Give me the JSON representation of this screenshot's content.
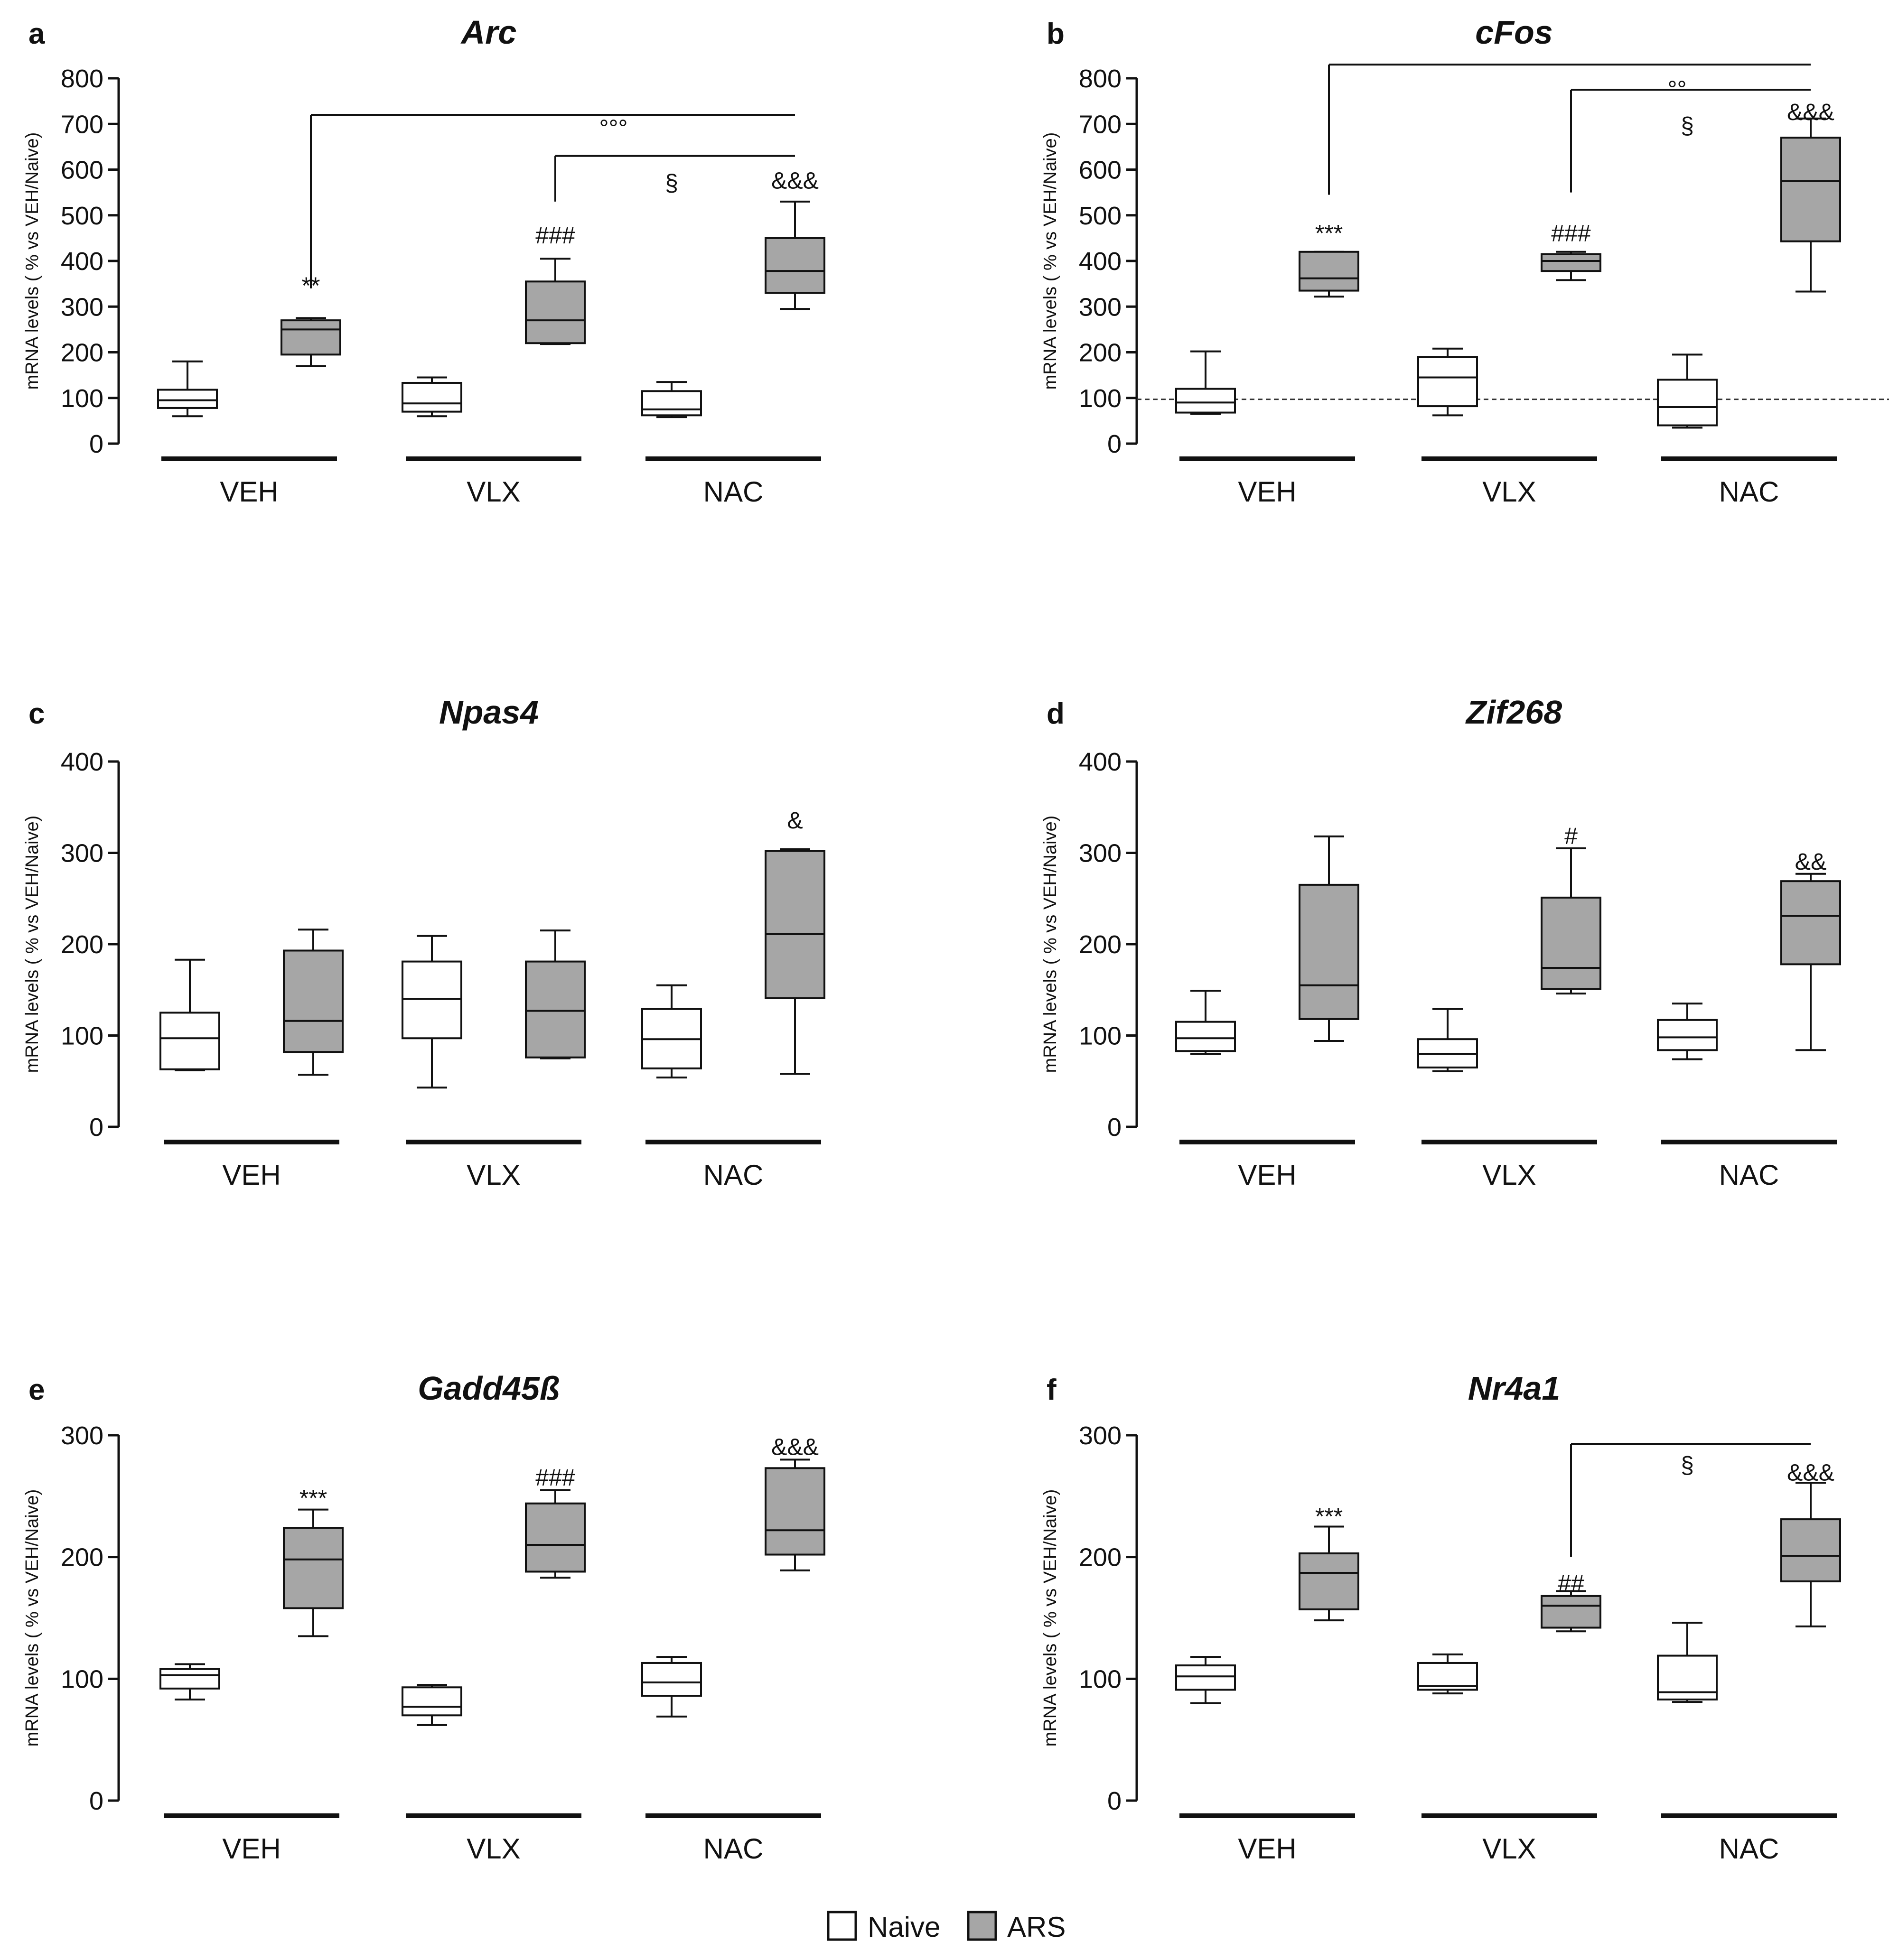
{
  "legend": {
    "items": [
      {
        "label": "Naive",
        "color": "#ffffff"
      },
      {
        "label": "ARS",
        "color": "#a6a6a6"
      }
    ]
  },
  "chart_data": [
    {
      "id": "a",
      "letter": "a",
      "type": "box",
      "title": "Arc",
      "ylabel": "mRNA levels ( % vs VEH/Naive)",
      "ylim": [
        0,
        800
      ],
      "yticks": [
        0,
        100,
        200,
        300,
        400,
        500,
        600,
        700,
        800
      ],
      "groups": [
        "VEH",
        "VLX",
        "NAC"
      ],
      "series": [
        {
          "name": "Naive",
          "boxes": [
            {
              "min": 60,
              "q1": 78,
              "median": 95,
              "q3": 118,
              "max": 180
            },
            {
              "min": 60,
              "q1": 70,
              "median": 88,
              "q3": 133,
              "max": 145
            },
            {
              "min": 58,
              "q1": 62,
              "median": 75,
              "q3": 115,
              "max": 135
            }
          ]
        },
        {
          "name": "ARS",
          "boxes": [
            {
              "min": 170,
              "q1": 195,
              "median": 250,
              "q3": 270,
              "max": 275
            },
            {
              "min": 218,
              "q1": 220,
              "median": 270,
              "q3": 355,
              "max": 405
            },
            {
              "min": 295,
              "q1": 330,
              "median": 378,
              "q3": 450,
              "max": 530
            }
          ]
        }
      ],
      "annotations": [
        {
          "text": "**",
          "group": 0,
          "series": 1,
          "y": 345
        },
        {
          "text": "###",
          "group": 1,
          "series": 1,
          "y": 455
        },
        {
          "text": "&&&",
          "group": 2,
          "series": 1,
          "y": 575
        },
        {
          "text": "°°°",
          "group": 1.5,
          "series": 0.5,
          "y": 690
        },
        {
          "text": "§",
          "group": 2,
          "series": 0,
          "y": 570
        }
      ],
      "brackets": [
        {
          "from": [
            0,
            1
          ],
          "to": [
            2,
            1
          ],
          "y": 720,
          "start_y": 340
        },
        {
          "from": [
            1,
            1
          ],
          "to": [
            2,
            1
          ],
          "y": 630,
          "start_y": 530
        }
      ]
    },
    {
      "id": "b",
      "letter": "b",
      "type": "box",
      "title": "cFos",
      "ylabel": "mRNA levels ( % vs VEH/Naive)",
      "ylim": [
        0,
        800
      ],
      "yticks": [
        0,
        100,
        200,
        300,
        400,
        500,
        600,
        700,
        800
      ],
      "groups": [
        "VEH",
        "VLX",
        "NAC"
      ],
      "reference_line": 97,
      "series": [
        {
          "name": "Naive",
          "boxes": [
            {
              "min": 65,
              "q1": 68,
              "median": 90,
              "q3": 120,
              "max": 202
            },
            {
              "min": 62,
              "q1": 82,
              "median": 145,
              "q3": 190,
              "max": 208
            },
            {
              "min": 35,
              "q1": 40,
              "median": 80,
              "q3": 140,
              "max": 195
            }
          ]
        },
        {
          "name": "ARS",
          "boxes": [
            {
              "min": 322,
              "q1": 335,
              "median": 362,
              "q3": 420,
              "max": 420
            },
            {
              "min": 358,
              "q1": 378,
              "median": 400,
              "q3": 415,
              "max": 420
            },
            {
              "min": 333,
              "q1": 443,
              "median": 575,
              "q3": 670,
              "max": 712
            }
          ]
        }
      ],
      "annotations": [
        {
          "text": "***",
          "group": 0,
          "series": 1,
          "y": 460
        },
        {
          "text": "###",
          "group": 1,
          "series": 1,
          "y": 460
        },
        {
          "text": "&&&",
          "group": 2,
          "series": 1,
          "y": 725
        },
        {
          "text": "°°",
          "group": 1.7,
          "series": 0.5,
          "y": 775
        },
        {
          "text": "§",
          "group": 2,
          "series": 0,
          "y": 695
        }
      ],
      "brackets": [
        {
          "from": [
            0,
            1
          ],
          "to": [
            2,
            1
          ],
          "y": 830,
          "start_y": 545
        },
        {
          "from": [
            1,
            1
          ],
          "to": [
            2,
            1
          ],
          "y": 775,
          "start_y": 550
        }
      ]
    },
    {
      "id": "c",
      "letter": "c",
      "type": "box",
      "title": "Npas4",
      "ylabel": "mRNA levels ( % vs VEH/Naive)",
      "ylim": [
        0,
        400
      ],
      "yticks": [
        0,
        100,
        200,
        300,
        400
      ],
      "groups": [
        "VEH",
        "VLX",
        "NAC"
      ],
      "series": [
        {
          "name": "Naive",
          "boxes": [
            {
              "min": 62,
              "q1": 63,
              "median": 97,
              "q3": 125,
              "max": 183
            },
            {
              "min": 43,
              "q1": 97,
              "median": 140,
              "q3": 181,
              "max": 209
            },
            {
              "min": 54,
              "q1": 64,
              "median": 96,
              "q3": 129,
              "max": 155
            }
          ]
        },
        {
          "name": "ARS",
          "boxes": [
            {
              "min": 57,
              "q1": 82,
              "median": 116,
              "q3": 193,
              "max": 216
            },
            {
              "min": 75,
              "q1": 76,
              "median": 127,
              "q3": 181,
              "max": 215
            },
            {
              "min": 58,
              "q1": 141,
              "median": 211,
              "q3": 302,
              "max": 304
            }
          ]
        }
      ],
      "annotations": [
        {
          "text": "&",
          "group": 2,
          "series": 1,
          "y": 335
        }
      ],
      "brackets": []
    },
    {
      "id": "d",
      "letter": "d",
      "type": "box",
      "title": "Zif268",
      "ylabel": "mRNA levels ( % vs VEH/Naive)",
      "ylim": [
        0,
        400
      ],
      "yticks": [
        0,
        100,
        200,
        300,
        400
      ],
      "groups": [
        "VEH",
        "VLX",
        "NAC"
      ],
      "series": [
        {
          "name": "Naive",
          "boxes": [
            {
              "min": 80,
              "q1": 83,
              "median": 97,
              "q3": 115,
              "max": 149
            },
            {
              "min": 61,
              "q1": 65,
              "median": 80,
              "q3": 96,
              "max": 129
            },
            {
              "min": 74,
              "q1": 84,
              "median": 98,
              "q3": 117,
              "max": 135
            }
          ]
        },
        {
          "name": "ARS",
          "boxes": [
            {
              "min": 94,
              "q1": 118,
              "median": 155,
              "q3": 265,
              "max": 318
            },
            {
              "min": 146,
              "q1": 151,
              "median": 174,
              "q3": 251,
              "max": 305
            },
            {
              "min": 84,
              "q1": 178,
              "median": 231,
              "q3": 269,
              "max": 277
            }
          ]
        }
      ],
      "annotations": [
        {
          "text": "#",
          "group": 1,
          "series": 1,
          "y": 318
        },
        {
          "text": "&&",
          "group": 2,
          "series": 1,
          "y": 290
        }
      ],
      "brackets": []
    },
    {
      "id": "e",
      "letter": "e",
      "type": "box",
      "title": "Gadd45ß",
      "ylabel": "mRNA levels ( % vs VEH/Naive)",
      "ylim": [
        0,
        300
      ],
      "yticks": [
        0,
        100,
        200,
        300
      ],
      "groups": [
        "VEH",
        "VLX",
        "NAC"
      ],
      "series": [
        {
          "name": "Naive",
          "boxes": [
            {
              "min": 83,
              "q1": 92,
              "median": 103,
              "q3": 108,
              "max": 112
            },
            {
              "min": 62,
              "q1": 70,
              "median": 77,
              "q3": 93,
              "max": 95
            },
            {
              "min": 69,
              "q1": 86,
              "median": 97,
              "q3": 113,
              "max": 118
            }
          ]
        },
        {
          "name": "ARS",
          "boxes": [
            {
              "min": 135,
              "q1": 158,
              "median": 198,
              "q3": 224,
              "max": 239
            },
            {
              "min": 183,
              "q1": 188,
              "median": 210,
              "q3": 244,
              "max": 255
            },
            {
              "min": 189,
              "q1": 202,
              "median": 222,
              "q3": 273,
              "max": 280
            }
          ]
        }
      ],
      "annotations": [
        {
          "text": "***",
          "group": 0,
          "series": 1,
          "y": 248
        },
        {
          "text": "###",
          "group": 1,
          "series": 1,
          "y": 265
        },
        {
          "text": "&&&",
          "group": 2,
          "series": 1,
          "y": 290
        }
      ],
      "brackets": []
    },
    {
      "id": "f",
      "letter": "f",
      "type": "box",
      "title": "Nr4a1",
      "ylabel": "mRNA levels ( % vs VEH/Naive)",
      "ylim": [
        0,
        300
      ],
      "yticks": [
        0,
        100,
        200,
        300
      ],
      "groups": [
        "VEH",
        "VLX",
        "NAC"
      ],
      "series": [
        {
          "name": "Naive",
          "boxes": [
            {
              "min": 80,
              "q1": 91,
              "median": 102,
              "q3": 111,
              "max": 118
            },
            {
              "min": 88,
              "q1": 91,
              "median": 94,
              "q3": 113,
              "max": 120
            },
            {
              "min": 81,
              "q1": 83,
              "median": 89,
              "q3": 119,
              "max": 146
            }
          ]
        },
        {
          "name": "ARS",
          "boxes": [
            {
              "min": 148,
              "q1": 157,
              "median": 187,
              "q3": 203,
              "max": 225
            },
            {
              "min": 139,
              "q1": 142,
              "median": 160,
              "q3": 168,
              "max": 172
            },
            {
              "min": 143,
              "q1": 180,
              "median": 201,
              "q3": 231,
              "max": 261
            }
          ]
        }
      ],
      "annotations": [
        {
          "text": "***",
          "group": 0,
          "series": 1,
          "y": 233
        },
        {
          "text": "##",
          "group": 1,
          "series": 1,
          "y": 178
        },
        {
          "text": "&&&",
          "group": 2,
          "series": 1,
          "y": 269
        },
        {
          "text": "§",
          "group": 2,
          "series": 0,
          "y": 275
        }
      ],
      "brackets": [
        {
          "from": [
            1,
            1
          ],
          "to": [
            2,
            1
          ],
          "y": 293,
          "start_y": 200
        }
      ]
    }
  ]
}
